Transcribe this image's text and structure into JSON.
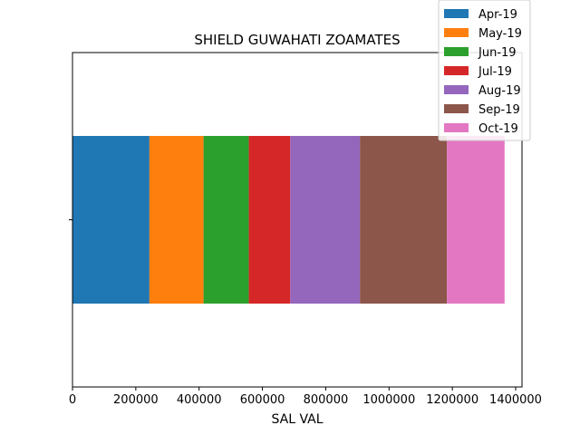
{
  "chart_data": {
    "type": "bar",
    "orientation": "horizontal",
    "stacked": true,
    "title": "SHIELD GUWAHATI ZOAMATES",
    "xlabel": "SAL VAL",
    "ylabel": "",
    "xlim": [
      0,
      1420000
    ],
    "xticks": [
      0,
      200000,
      400000,
      600000,
      800000,
      1000000,
      1200000,
      1400000
    ],
    "xtick_labels": [
      "0",
      "200000",
      "400000",
      "600000",
      "800000",
      "1000000",
      "1200000",
      "1400000"
    ],
    "categories": [
      ""
    ],
    "grid": false,
    "legend_position": "top-right",
    "series": [
      {
        "name": "Apr-19",
        "values": [
          243000
        ],
        "color": "#1f77b4"
      },
      {
        "name": "May-19",
        "values": [
          171000
        ],
        "color": "#ff7f0e"
      },
      {
        "name": "Jun-19",
        "values": [
          143000
        ],
        "color": "#2ca02c"
      },
      {
        "name": "Jul-19",
        "values": [
          131000
        ],
        "color": "#d62728"
      },
      {
        "name": "Aug-19",
        "values": [
          220000
        ],
        "color": "#9467bd"
      },
      {
        "name": "Sep-19",
        "values": [
          275000
        ],
        "color": "#8c564b"
      },
      {
        "name": "Oct-19",
        "values": [
          182000
        ],
        "color": "#e377c2"
      }
    ]
  }
}
